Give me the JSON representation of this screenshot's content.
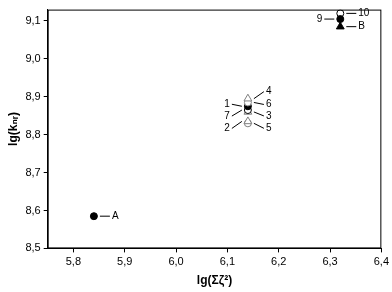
{
  "chart_data": {
    "type": "scatter",
    "x_label": "lg(Σζ²)",
    "y_label": "lg(kₙᵣ)",
    "xlim": [
      5.75,
      6.4
    ],
    "xticks": [
      {
        "value": 5.8,
        "label": "5,8"
      },
      {
        "value": 5.9,
        "label": "5,9"
      },
      {
        "value": 6.0,
        "label": "6,0"
      },
      {
        "value": 6.1,
        "label": "6,1"
      },
      {
        "value": 6.2,
        "label": "6,2"
      },
      {
        "value": 6.3,
        "label": "6,3"
      },
      {
        "value": 6.4,
        "label": "6,4"
      }
    ],
    "ylim": [
      8.5,
      9.13
    ],
    "yticks": [
      {
        "value": 8.5,
        "label": "8,5"
      },
      {
        "value": 8.6,
        "label": "8,6"
      },
      {
        "value": 8.7,
        "label": "8,7"
      },
      {
        "value": 8.8,
        "label": "8,8"
      },
      {
        "value": 8.9,
        "label": "8,9"
      },
      {
        "value": 9.0,
        "label": "9,0"
      },
      {
        "value": 9.1,
        "label": "9,1"
      }
    ],
    "grid": false,
    "series": [
      {
        "name": "A",
        "color": "#000000",
        "marker": "circle",
        "x": [
          5.84
        ],
        "values": [
          8.585
        ]
      },
      {
        "name": "B",
        "color": "#000000",
        "marker": "triangle",
        "x": [
          6.32
        ],
        "values": [
          9.085
        ]
      },
      {
        "name": "9",
        "color": "#000000",
        "marker": "circle",
        "x": [
          6.32
        ],
        "values": [
          9.105
        ]
      },
      {
        "name": "10",
        "color": "#000000",
        "marker": "open_circle",
        "x": [
          6.32
        ],
        "values": [
          9.12
        ]
      },
      {
        "name": "4",
        "color": "#808080",
        "marker": "open_triangle",
        "x": [
          6.14
        ],
        "values": [
          8.895
        ]
      },
      {
        "name": "6",
        "color": "#808080",
        "marker": "open_circle",
        "x": [
          6.14
        ],
        "values": [
          8.885
        ]
      },
      {
        "name": "1",
        "color": "#000000",
        "marker": "circle",
        "x": [
          6.14
        ],
        "values": [
          8.875
        ]
      },
      {
        "name": "7",
        "color": "#000000",
        "marker": "open_circle",
        "x": [
          6.14
        ],
        "values": [
          8.865
        ]
      },
      {
        "name": "3",
        "color": "#808080",
        "marker": "open_triangle",
        "x": [
          6.14
        ],
        "values": [
          8.86
        ]
      },
      {
        "name": "2",
        "color": "#808080",
        "marker": "open_triangle",
        "x": [
          6.14
        ],
        "values": [
          8.835
        ]
      },
      {
        "name": "5",
        "color": "#808080",
        "marker": "open_circle",
        "x": [
          6.14
        ],
        "values": [
          8.83
        ]
      }
    ]
  }
}
